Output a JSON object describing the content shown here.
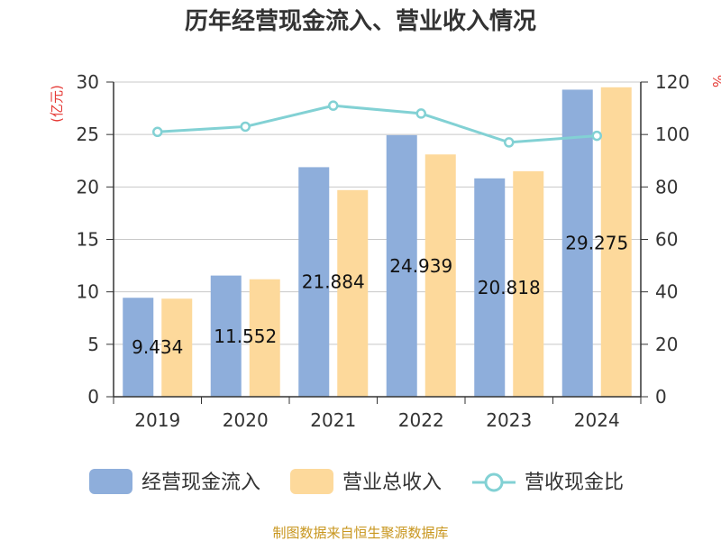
{
  "chart_data": {
    "type": "bar",
    "title": "历年经营现金流入、营业收入情况",
    "categories": [
      "2019",
      "2020",
      "2021",
      "2022",
      "2023",
      "2024"
    ],
    "series": [
      {
        "name": "经营现金流入",
        "kind": "bar",
        "axis": "left",
        "color": "#8eaedb",
        "values": [
          9.434,
          11.552,
          21.884,
          24.939,
          20.818,
          29.275
        ],
        "labels": [
          "9.434",
          "11.552",
          "21.884",
          "24.939",
          "20.818",
          "29.275"
        ]
      },
      {
        "name": "营业总收入",
        "kind": "bar",
        "axis": "left",
        "color": "#fdd99b",
        "values": [
          9.35,
          11.2,
          19.7,
          23.1,
          21.5,
          29.5
        ]
      },
      {
        "name": "营收现金比",
        "kind": "line",
        "axis": "right",
        "color": "#82d1d4",
        "values": [
          101,
          103,
          111,
          108,
          97,
          99.5
        ]
      }
    ],
    "left_axis": {
      "label": "(亿元)",
      "min": 0,
      "max": 30,
      "ticks": [
        0,
        5,
        10,
        15,
        20,
        25,
        30
      ]
    },
    "right_axis": {
      "label": "%",
      "min": 0,
      "max": 120,
      "ticks": [
        0,
        20,
        40,
        60,
        80,
        100,
        120
      ]
    },
    "grid": true,
    "legend_position": "bottom"
  },
  "source": "制图数据来自恒生聚源数据库"
}
